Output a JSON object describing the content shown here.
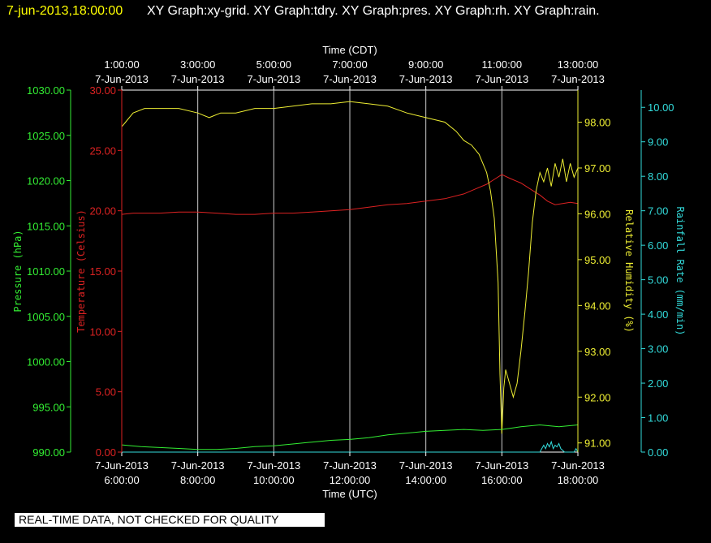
{
  "header": {
    "datetime": "7-jun-2013,18:00:00",
    "graphs": "XY Graph:xy-grid.  XY Graph:tdry.  XY Graph:pres.  XY Graph:rh.  XY Graph:rain."
  },
  "notice": "REAL-TIME DATA, NOT CHECKED FOR QUALITY",
  "chart_data": {
    "type": "line",
    "grid": true,
    "top_axis": {
      "title": "Time (CDT)",
      "ticks": [
        {
          "time": "1:00:00",
          "date": "7-Jun-2013"
        },
        {
          "time": "3:00:00",
          "date": "7-Jun-2013"
        },
        {
          "time": "5:00:00",
          "date": "7-Jun-2013"
        },
        {
          "time": "7:00:00",
          "date": "7-Jun-2013"
        },
        {
          "time": "9:00:00",
          "date": "7-Jun-2013"
        },
        {
          "time": "11:00:00",
          "date": "7-Jun-2013"
        },
        {
          "time": "13:00:00",
          "date": "7-Jun-2013"
        }
      ]
    },
    "bottom_axis": {
      "title": "Time (UTC)",
      "ticks": [
        {
          "time": "6:00:00",
          "date": "7-Jun-2013"
        },
        {
          "time": "8:00:00",
          "date": "7-Jun-2013"
        },
        {
          "time": "10:00:00",
          "date": "7-Jun-2013"
        },
        {
          "time": "12:00:00",
          "date": "7-Jun-2013"
        },
        {
          "time": "14:00:00",
          "date": "7-Jun-2013"
        },
        {
          "time": "16:00:00",
          "date": "7-Jun-2013"
        },
        {
          "time": "18:00:00",
          "date": "7-Jun-2013"
        }
      ],
      "xlim": [
        6.0,
        18.0
      ]
    },
    "axes": [
      {
        "id": "pressure",
        "label": "Pressure (hPa)",
        "color": "#33ee33",
        "ticks": [
          "990.00",
          "995.00",
          "1000.00",
          "1005.00",
          "1010.00",
          "1015.00",
          "1020.00",
          "1025.00",
          "1030.00"
        ],
        "ylim": [
          990,
          1030
        ]
      },
      {
        "id": "temperature",
        "label": "Temperature (Celsius)",
        "color": "#dd2222",
        "ticks": [
          "0.00",
          "5.00",
          "10.00",
          "15.00",
          "20.00",
          "25.00",
          "30.00"
        ],
        "ylim": [
          0,
          30
        ]
      },
      {
        "id": "humidity",
        "label": "Relative Humidity (%)",
        "color": "#eeee33",
        "ticks": [
          "91.00",
          "92.00",
          "93.00",
          "94.00",
          "95.00",
          "96.00",
          "97.00",
          "98.00"
        ],
        "ylim": [
          90.8,
          98.7
        ]
      },
      {
        "id": "rain",
        "label": "Rainfall Rate (mm/min)",
        "color": "#33dddd",
        "ticks": [
          "0.00",
          "1.00",
          "2.00",
          "3.00",
          "4.00",
          "5.00",
          "6.00",
          "7.00",
          "8.00",
          "9.00",
          "10.00"
        ],
        "ylim": [
          0,
          10.5
        ]
      }
    ],
    "series": [
      {
        "axis": "temperature",
        "color": "#dd2222",
        "x": [
          6.0,
          6.3,
          6.6,
          7.0,
          7.5,
          8.0,
          8.5,
          9.0,
          9.5,
          10.0,
          10.5,
          11.0,
          11.5,
          12.0,
          12.5,
          13.0,
          13.5,
          14.0,
          14.5,
          15.0,
          15.3,
          15.6,
          15.8,
          16.0,
          16.2,
          16.5,
          16.8,
          17.0,
          17.2,
          17.4,
          17.6,
          17.8,
          18.0
        ],
        "y": [
          19.7,
          19.8,
          19.8,
          19.8,
          19.9,
          19.9,
          19.8,
          19.7,
          19.7,
          19.8,
          19.8,
          19.9,
          20.0,
          20.1,
          20.3,
          20.5,
          20.6,
          20.8,
          21.0,
          21.4,
          21.8,
          22.2,
          22.6,
          23.0,
          22.7,
          22.3,
          21.7,
          21.3,
          20.8,
          20.5,
          20.6,
          20.7,
          20.6
        ]
      },
      {
        "axis": "humidity",
        "color": "#eeee33",
        "x": [
          6.0,
          6.1,
          6.3,
          6.6,
          7.0,
          7.5,
          8.0,
          8.3,
          8.6,
          9.0,
          9.5,
          10.0,
          10.5,
          11.0,
          11.5,
          12.0,
          12.5,
          13.0,
          13.5,
          14.0,
          14.5,
          14.8,
          15.0,
          15.2,
          15.4,
          15.6,
          15.7,
          15.8,
          15.9,
          15.95,
          16.0,
          16.05,
          16.1,
          16.2,
          16.3,
          16.4,
          16.5,
          16.6,
          16.7,
          16.8,
          16.9,
          17.0,
          17.1,
          17.2,
          17.3,
          17.4,
          17.5,
          17.6,
          17.7,
          17.8,
          17.9,
          18.0
        ],
        "y": [
          97.9,
          98.0,
          98.2,
          98.3,
          98.3,
          98.3,
          98.2,
          98.1,
          98.2,
          98.2,
          98.3,
          98.3,
          98.35,
          98.4,
          98.4,
          98.45,
          98.4,
          98.35,
          98.2,
          98.1,
          98.0,
          97.8,
          97.6,
          97.5,
          97.3,
          96.9,
          96.5,
          95.9,
          94.5,
          92.5,
          91.2,
          92.2,
          92.6,
          92.3,
          92.0,
          92.3,
          93.0,
          93.8,
          94.7,
          95.8,
          96.5,
          96.9,
          96.7,
          97.0,
          96.6,
          97.1,
          96.8,
          97.2,
          96.7,
          97.1,
          96.8,
          97.0
        ]
      },
      {
        "axis": "pressure",
        "color": "#33ee33",
        "x": [
          6.0,
          6.5,
          7.0,
          7.5,
          8.0,
          8.5,
          9.0,
          9.5,
          10.0,
          10.5,
          11.0,
          11.5,
          12.0,
          12.5,
          13.0,
          13.5,
          14.0,
          14.5,
          15.0,
          15.5,
          16.0,
          16.5,
          17.0,
          17.5,
          18.0
        ],
        "y": [
          990.8,
          990.6,
          990.5,
          990.4,
          990.3,
          990.3,
          990.4,
          990.6,
          990.7,
          990.9,
          991.1,
          991.3,
          991.4,
          991.6,
          991.9,
          992.1,
          992.3,
          992.4,
          992.5,
          992.4,
          992.5,
          992.8,
          993.0,
          992.8,
          993.0
        ]
      },
      {
        "axis": "rain",
        "color": "#33dddd",
        "x": [
          6.0,
          17.0,
          17.05,
          17.1,
          17.15,
          17.2,
          17.25,
          17.3,
          17.35,
          17.4,
          17.45,
          17.5,
          17.55,
          17.6,
          17.65,
          17.7,
          17.8,
          17.9,
          17.95,
          18.0
        ],
        "y": [
          0.0,
          0.0,
          0.1,
          0.2,
          0.1,
          0.25,
          0.15,
          0.3,
          0.1,
          0.2,
          0.15,
          0.25,
          0.1,
          0.05,
          0.0,
          0.0,
          0.0,
          0.0,
          0.1,
          0.0
        ]
      }
    ]
  }
}
